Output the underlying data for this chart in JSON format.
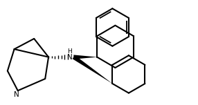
{
  "background": "#ffffff",
  "line_color": "#000000",
  "line_width": 1.5,
  "fig_width": 2.86,
  "fig_height": 1.52,
  "dpi": 100,
  "xlim": [
    0,
    10
  ],
  "ylim": [
    0,
    5.3
  ]
}
